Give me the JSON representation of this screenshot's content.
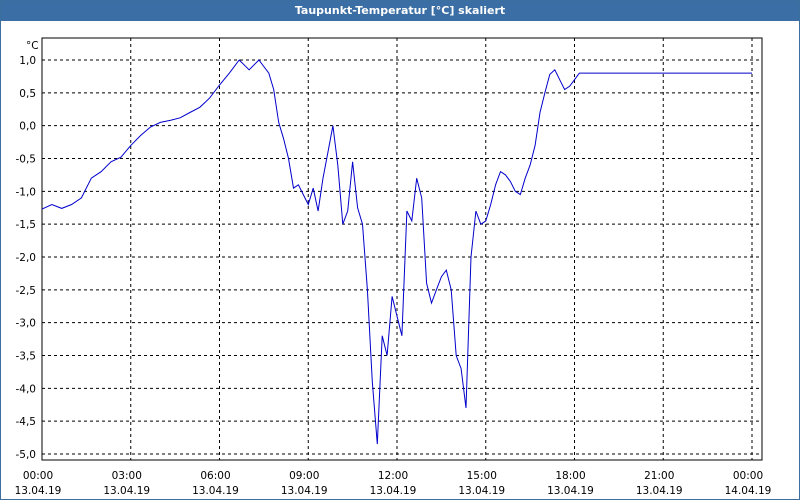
{
  "window": {
    "title": "Taupunkt-Temperatur [°C] skaliert"
  },
  "chart_data": {
    "type": "line",
    "title": "Taupunkt-Temperatur [°C] skaliert",
    "y_unit": "°C",
    "ylim": [
      -5.0,
      1.0
    ],
    "y_ticks": [
      "1,0",
      "0,5",
      "0,0",
      "-0,5",
      "-1,0",
      "-1,5",
      "-2,0",
      "-2,5",
      "-3,0",
      "-3,5",
      "-4,0",
      "-4,5",
      "-5,0"
    ],
    "x_ticks": [
      {
        "time": "00:00",
        "date": "13.04.19"
      },
      {
        "time": "03:00",
        "date": "13.04.19"
      },
      {
        "time": "06:00",
        "date": "13.04.19"
      },
      {
        "time": "09:00",
        "date": "13.04.19"
      },
      {
        "time": "12:00",
        "date": "13.04.19"
      },
      {
        "time": "15:00",
        "date": "13.04.19"
      },
      {
        "time": "18:00",
        "date": "13.04.19"
      },
      {
        "time": "21:00",
        "date": "13.04.19"
      },
      {
        "time": "00:00",
        "date": "14.04.19"
      }
    ],
    "grid": true,
    "line_color": "#0000cc",
    "series": [
      {
        "x": [
          "00:00",
          "00:20",
          "00:40",
          "01:00",
          "01:20",
          "01:40",
          "02:00",
          "02:20",
          "02:40",
          "03:00",
          "03:20",
          "03:40",
          "04:00",
          "04:20",
          "04:40",
          "05:00",
          "05:20",
          "05:40",
          "06:00",
          "06:20",
          "06:40",
          "07:00",
          "07:20",
          "07:40",
          "07:50",
          "08:00",
          "08:10",
          "08:20",
          "08:30",
          "08:40",
          "08:50",
          "09:00",
          "09:10",
          "09:20",
          "09:30",
          "09:40",
          "09:50",
          "10:00",
          "10:10",
          "10:20",
          "10:30",
          "10:40",
          "10:50",
          "11:00",
          "11:10",
          "11:20",
          "11:30",
          "11:40",
          "11:50",
          "12:00",
          "12:10",
          "12:20",
          "12:30",
          "12:40",
          "12:50",
          "13:00",
          "13:10",
          "13:20",
          "13:30",
          "13:40",
          "13:50",
          "14:00",
          "14:10",
          "14:20",
          "14:30",
          "14:40",
          "14:50",
          "15:00",
          "15:10",
          "15:20",
          "15:30",
          "15:40",
          "15:50",
          "16:00",
          "16:10",
          "16:20",
          "16:30",
          "16:40",
          "16:50",
          "17:00",
          "17:10",
          "17:20",
          "17:30",
          "17:40",
          "17:50",
          "18:00",
          "18:10",
          "18:20",
          "18:30",
          "18:40",
          "18:50",
          "19:00",
          "19:20",
          "19:40",
          "20:00",
          "20:20",
          "20:40",
          "21:00",
          "21:20",
          "21:40",
          "22:00",
          "22:20",
          "22:40",
          "23:00",
          "23:20",
          "23:40",
          "00:00"
        ],
        "y": [
          -1.27,
          -1.2,
          -1.26,
          -1.2,
          -1.1,
          -0.8,
          -0.7,
          -0.55,
          -0.48,
          -0.3,
          -0.15,
          -0.02,
          0.05,
          0.08,
          0.12,
          0.2,
          0.28,
          0.42,
          0.62,
          0.8,
          1.0,
          0.85,
          1.0,
          0.8,
          0.55,
          0.05,
          -0.2,
          -0.5,
          -0.95,
          -0.9,
          -1.05,
          -1.2,
          -0.95,
          -1.3,
          -0.8,
          -0.4,
          0.0,
          -0.6,
          -1.5,
          -1.3,
          -0.55,
          -1.25,
          -1.5,
          -2.5,
          -3.9,
          -4.85,
          -3.2,
          -3.5,
          -2.6,
          -2.9,
          -3.2,
          -1.3,
          -1.45,
          -0.8,
          -1.1,
          -2.4,
          -2.7,
          -2.5,
          -2.3,
          -2.2,
          -2.5,
          -3.5,
          -3.7,
          -4.3,
          -2.0,
          -1.3,
          -1.5,
          -1.45,
          -1.2,
          -0.9,
          -0.7,
          -0.75,
          -0.85,
          -1.0,
          -1.05,
          -0.8,
          -0.6,
          -0.3,
          0.2,
          0.5,
          0.78,
          0.85,
          0.7,
          0.55,
          0.6,
          0.7,
          0.8,
          0.8,
          0.8,
          0.8,
          0.8,
          0.8,
          0.8,
          0.8,
          0.8,
          0.8,
          0.8,
          0.8,
          0.8,
          0.8,
          0.8,
          0.8,
          0.8,
          0.8,
          0.8,
          0.8,
          0.8
        ]
      }
    ]
  }
}
